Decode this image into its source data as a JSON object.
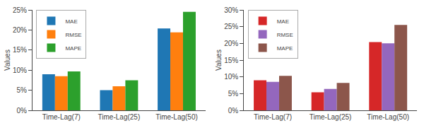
{
  "chart_data": [
    {
      "type": "bar",
      "categories": [
        "Time-Lag(7)",
        "Time-Lag(25)",
        "Time-Lag(50)"
      ],
      "series": [
        {
          "name": "MAE",
          "values": [
            9.0,
            5.0,
            20.4
          ]
        },
        {
          "name": "RMSE",
          "values": [
            8.5,
            6.0,
            19.4
          ]
        },
        {
          "name": "MAPE",
          "values": [
            9.7,
            7.5,
            24.5
          ]
        }
      ],
      "ylabel": "Values",
      "ylim": [
        0,
        25
      ],
      "yticks": [
        {
          "value": 0,
          "label": "0%"
        },
        {
          "value": 5,
          "label": "5%"
        },
        {
          "value": 10,
          "label": "10%"
        },
        {
          "value": 15,
          "label": "15%"
        },
        {
          "value": 20,
          "label": "20%"
        },
        {
          "value": 25,
          "label": "25%"
        }
      ],
      "grid": false,
      "legend": "upper left"
    },
    {
      "type": "bar",
      "categories": [
        "Time-Lag(7)",
        "Time-Lag(25)",
        "Time-Lag(50)"
      ],
      "series": [
        {
          "name": "MAE",
          "values": [
            9.0,
            5.4,
            20.4
          ]
        },
        {
          "name": "RMSE",
          "values": [
            8.5,
            6.4,
            20.0
          ]
        },
        {
          "name": "MAPE",
          "values": [
            10.3,
            8.2,
            25.5
          ]
        }
      ],
      "ylabel": "Values",
      "ylim": [
        0,
        30
      ],
      "yticks": [
        {
          "value": 0,
          "label": "0%"
        },
        {
          "value": 5,
          "label": "5%"
        },
        {
          "value": 10,
          "label": "10%"
        },
        {
          "value": 15,
          "label": "15%"
        },
        {
          "value": 20,
          "label": "20%"
        },
        {
          "value": 25,
          "label": "25%"
        },
        {
          "value": 30,
          "label": "30%"
        }
      ],
      "grid": false,
      "legend": "upper left"
    }
  ]
}
